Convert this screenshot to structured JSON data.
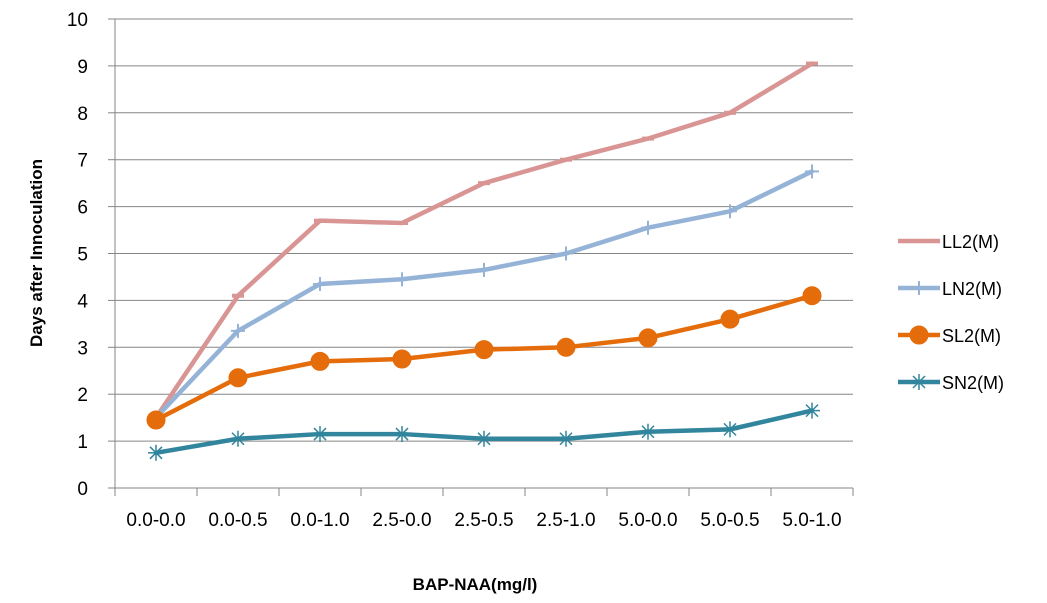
{
  "chart_data": {
    "type": "line",
    "title": "",
    "xlabel": "BAP-NAA(mg/l)",
    "ylabel": "Days after Innoculation",
    "ylim": [
      0,
      10
    ],
    "yticks": [
      "0",
      "1",
      "2",
      "3",
      "4",
      "5",
      "6",
      "7",
      "8",
      "9",
      "10"
    ],
    "categories": [
      "0.0-0.0",
      "0.0-0.5",
      "0.0-1.0",
      "2.5-0.0",
      "2.5-0.5",
      "2.5-1.0",
      "5.0-0.0",
      "5.0-0.5",
      "5.0-1.0"
    ],
    "grid": "horizontal",
    "legend_position": "right",
    "series": [
      {
        "name": "LL2(M)",
        "color": "#d99594",
        "marker": "dash",
        "values": [
          1.5,
          4.1,
          5.7,
          5.65,
          6.5,
          7.0,
          7.45,
          8.0,
          9.05
        ]
      },
      {
        "name": "LN2(M)",
        "color": "#95b3d7",
        "marker": "plus",
        "values": [
          1.5,
          3.35,
          4.35,
          4.45,
          4.65,
          5.0,
          5.55,
          5.9,
          6.75
        ]
      },
      {
        "name": "SL2(M)",
        "color": "#e46c0a",
        "marker": "circle",
        "values": [
          1.45,
          2.35,
          2.7,
          2.75,
          2.95,
          3.0,
          3.2,
          3.6,
          4.1
        ]
      },
      {
        "name": "SN2(M)",
        "color": "#31859c",
        "marker": "asterisk",
        "values": [
          0.75,
          1.05,
          1.15,
          1.15,
          1.05,
          1.05,
          1.2,
          1.25,
          1.65
        ]
      }
    ]
  }
}
